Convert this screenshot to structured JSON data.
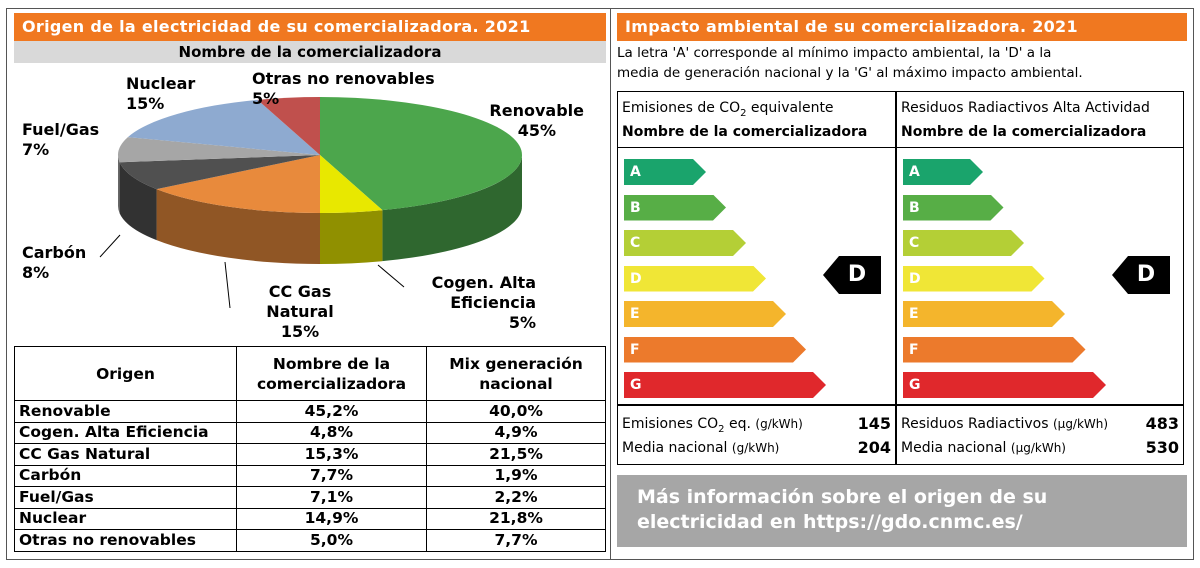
{
  "left": {
    "title": "Origen de la electricidad de su comercializadora. 2021",
    "subtitle": "Nombre de la comercializadora",
    "pie_labels": {
      "nuclear": [
        "Nuclear",
        "15%"
      ],
      "otras": [
        "Otras no renovables",
        "5%"
      ],
      "renovable": [
        "Renovable",
        "45%"
      ],
      "fuelgas": [
        "Fuel/Gas",
        "7%"
      ],
      "carbon": [
        "Carbón",
        "8%"
      ],
      "ccgas": [
        "CC Gas",
        "Natural",
        "15%"
      ],
      "cogen": [
        "Cogen. Alta",
        "Eficiencia",
        "5%"
      ]
    },
    "table": {
      "headers": [
        "Origen",
        "Nombre de la comercializadora",
        "Mix generación nacional"
      ],
      "rows": [
        [
          "Renovable",
          "45,2%",
          "40,0%"
        ],
        [
          "Cogen. Alta Eficiencia",
          "4,8%",
          "4,9%"
        ],
        [
          "CC Gas Natural",
          "15,3%",
          "21,5%"
        ],
        [
          "Carbón",
          "7,7%",
          "1,9%"
        ],
        [
          "Fuel/Gas",
          "7,1%",
          "2,2%"
        ],
        [
          "Nuclear",
          "14,9%",
          "21,8%"
        ],
        [
          "Otras no renovables",
          "5,0%",
          "7,7%"
        ]
      ]
    }
  },
  "chart_data": {
    "type": "pie",
    "slices": [
      {
        "label": "Renovable",
        "value": 45,
        "color": "#4ca64c"
      },
      {
        "label": "Cogen. Alta Eficiencia",
        "value": 5,
        "color": "#e8e800"
      },
      {
        "label": "CC Gas Natural",
        "value": 15,
        "color": "#e88a3c"
      },
      {
        "label": "Carbón",
        "value": 8,
        "color": "#505050"
      },
      {
        "label": "Fuel/Gas",
        "value": 7,
        "color": "#a6a6a6"
      },
      {
        "label": "Nuclear",
        "value": 15,
        "color": "#8eaad0"
      },
      {
        "label": "Otras no renovables",
        "value": 5,
        "color": "#c0504d"
      }
    ]
  },
  "right": {
    "title": "Impacto ambiental de su comercializadora. 2021",
    "intro_line1": "La letra 'A' corresponde al mínimo impacto ambiental, la 'D' a la",
    "intro_line2": "media de generación nacional y la 'G' al máximo impacto ambiental.",
    "grades": [
      {
        "letter": "A",
        "color": "#1aa46c"
      },
      {
        "letter": "B",
        "color": "#57ae46"
      },
      {
        "letter": "C",
        "color": "#b4cf36"
      },
      {
        "letter": "D",
        "color": "#f0e636"
      },
      {
        "letter": "E",
        "color": "#f4b52c"
      },
      {
        "letter": "F",
        "color": "#ec7a2c"
      },
      {
        "letter": "G",
        "color": "#e0282c"
      }
    ],
    "co2": {
      "title_pre": "Emisiones de CO",
      "title_sub": "2",
      "title_post": " equivalente",
      "subtitle": "Nombre de la comercializadora",
      "rating": "D",
      "stat1_pre": "Emisiones CO",
      "stat1_sub": "2",
      "stat1_post": " eq.",
      "stat1_unit": "(g/kWh)",
      "stat1_value": "145",
      "stat2_label": "Media nacional",
      "stat2_unit": "(g/kWh)",
      "stat2_value": "204"
    },
    "rad": {
      "title": "Residuos Radiactivos Alta Actividad",
      "subtitle": "Nombre de la comercializadora",
      "rating": "D",
      "stat1_label": "Residuos Radiactivos",
      "stat1_unit": "(µg/kWh)",
      "stat1_value": "483",
      "stat2_label": "Media nacional",
      "stat2_unit": "(µg/kWh)",
      "stat2_value": "530"
    },
    "info_line1": "Más información sobre el origen de su",
    "info_line2": "electricidad en https://gdo.cnmc.es/"
  }
}
